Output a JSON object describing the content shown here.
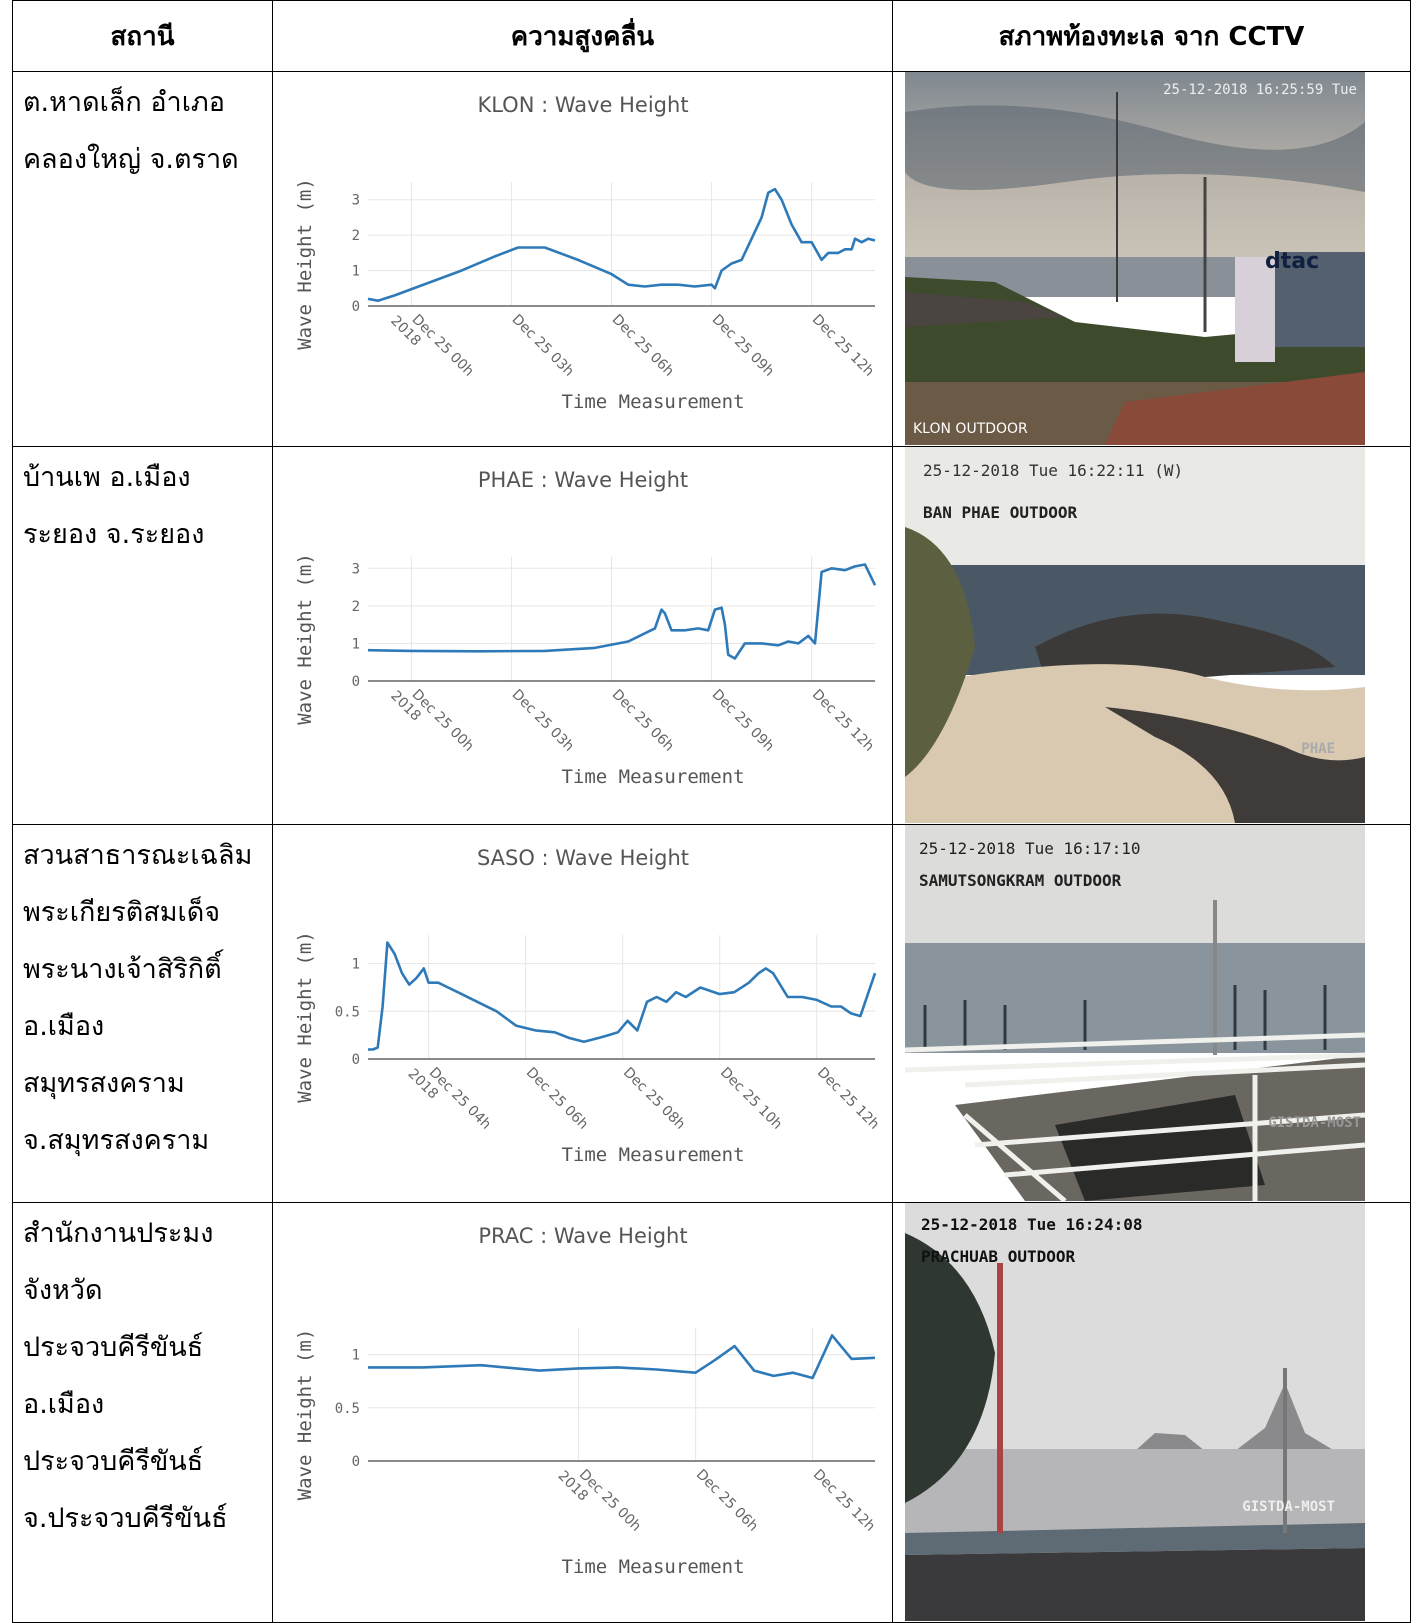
{
  "table": {
    "headers": [
      "สถานี",
      "ความสูงคลื่น",
      "สภาพท้องทะเล จาก CCTV"
    ],
    "rows": [
      {
        "station": "ต.หาดเล็ก อำเภอ\nคลองใหญ่ จ.ตราด",
        "chart_title": "KLON : Wave Height",
        "cctv": {
          "timestamp": "25-12-2018 16:25:59 Tue",
          "label": "KLON OUTDOOR"
        }
      },
      {
        "station": "บ้านเพ อ.เมือง\nระยอง จ.ระยอง",
        "chart_title": "PHAE : Wave Height",
        "cctv": {
          "timestamp": "25-12-2018 Tue 16:22:11 (W)",
          "label": "BAN PHAE OUTDOOR",
          "watermark": "PHAE"
        }
      },
      {
        "station": "สวนสาธารณะเฉลิม\nพระเกียรติสมเด็จ\nพระนางเจ้าสิริกิติ์\nอ.เมืองสมุทรสงคราม\nจ.สมุทรสงคราม",
        "chart_title": "SASO : Wave Height",
        "cctv": {
          "timestamp": "25-12-2018 Tue 16:17:10",
          "label": "SAMUTSONGKRAM OUTDOOR",
          "watermark": "GISTDA-MOST"
        }
      },
      {
        "station": "สำนักงานประมง\nจังหวัด\nประจวบคีรีขันธ์\nอ.เมือง\nประจวบคีรีขันธ์\nจ.ประจวบคีรีขันธ์",
        "chart_title": "PRAC : Wave Height",
        "cctv": {
          "timestamp": "25-12-2018 Tue 16:24:08",
          "label": "PRACHUAB OUTDOOR",
          "watermark": "GISTDA-MOST"
        }
      }
    ]
  },
  "chart_data": [
    {
      "type": "line",
      "title": "KLON : Wave Height",
      "xlabel": "Time Measurement",
      "ylabel": "Wave Height (m)",
      "ylim": [
        0,
        3.5
      ],
      "yticks": [
        0,
        1,
        2,
        3
      ],
      "xlim_hours": [
        -1.3,
        13.9
      ],
      "xticks": [
        {
          "h": 0,
          "label": [
            "Dec 25 00h",
            "2018"
          ]
        },
        {
          "h": 3,
          "label": [
            "Dec 25 03h"
          ]
        },
        {
          "h": 6,
          "label": [
            "Dec 25 06h"
          ]
        },
        {
          "h": 9,
          "label": [
            "Dec 25 09h"
          ]
        },
        {
          "h": 12,
          "label": [
            "Dec 25 12h"
          ]
        }
      ],
      "x": [
        -1.3,
        -1.0,
        -0.5,
        0.5,
        1.5,
        2.5,
        3.2,
        4.0,
        5.0,
        6.0,
        6.5,
        7.0,
        7.5,
        8.0,
        8.5,
        9.0,
        9.1,
        9.3,
        9.6,
        9.9,
        10.2,
        10.5,
        10.7,
        10.9,
        11.1,
        11.4,
        11.7,
        12.0,
        12.3,
        12.5,
        12.8,
        13.0,
        13.2,
        13.3,
        13.5,
        13.7,
        13.9
      ],
      "y": [
        0.2,
        0.15,
        0.3,
        0.65,
        1.0,
        1.4,
        1.65,
        1.65,
        1.3,
        0.9,
        0.6,
        0.55,
        0.6,
        0.6,
        0.55,
        0.6,
        0.5,
        1.0,
        1.2,
        1.3,
        1.9,
        2.5,
        3.2,
        3.3,
        3.0,
        2.3,
        1.8,
        1.8,
        1.3,
        1.5,
        1.5,
        1.6,
        1.6,
        1.9,
        1.8,
        1.9,
        1.85
      ]
    },
    {
      "type": "line",
      "title": "PHAE : Wave Height",
      "xlabel": "Time Measurement",
      "ylabel": "Wave Height (m)",
      "ylim": [
        0,
        3.3
      ],
      "yticks": [
        0,
        1,
        2,
        3
      ],
      "xlim_hours": [
        -1.3,
        13.9
      ],
      "xticks": [
        {
          "h": 0,
          "label": [
            "Dec 25 00h",
            "2018"
          ]
        },
        {
          "h": 3,
          "label": [
            "Dec 25 03h"
          ]
        },
        {
          "h": 6,
          "label": [
            "Dec 25 06h"
          ]
        },
        {
          "h": 9,
          "label": [
            "Dec 25 09h"
          ]
        },
        {
          "h": 12,
          "label": [
            "Dec 25 12h"
          ]
        }
      ],
      "x": [
        -1.3,
        0,
        2,
        4,
        5.5,
        6.5,
        7.3,
        7.5,
        7.6,
        7.8,
        8.2,
        8.6,
        8.9,
        9.1,
        9.3,
        9.4,
        9.5,
        9.7,
        10.0,
        10.5,
        11.0,
        11.3,
        11.6,
        11.9,
        12.1,
        12.3,
        12.6,
        13.0,
        13.3,
        13.6,
        13.9
      ],
      "y": [
        0.82,
        0.8,
        0.79,
        0.8,
        0.88,
        1.05,
        1.4,
        1.9,
        1.8,
        1.35,
        1.35,
        1.4,
        1.35,
        1.9,
        1.95,
        1.5,
        0.7,
        0.6,
        1.0,
        1.0,
        0.95,
        1.05,
        1.0,
        1.2,
        1.0,
        2.9,
        3.0,
        2.95,
        3.05,
        3.1,
        2.55
      ]
    },
    {
      "type": "line",
      "title": "SASO : Wave Height",
      "xlabel": "Time Measurement",
      "ylabel": "Wave Height (m)",
      "ylim": [
        0,
        1.3
      ],
      "yticks": [
        0,
        0.5,
        1
      ],
      "xlim_hours": [
        2.75,
        13.2
      ],
      "xticks": [
        {
          "h": 4,
          "label": [
            "Dec 25 04h",
            "2018"
          ]
        },
        {
          "h": 6,
          "label": [
            "Dec 25 06h"
          ]
        },
        {
          "h": 8,
          "label": [
            "Dec 25 08h"
          ]
        },
        {
          "h": 10,
          "label": [
            "Dec 25 10h"
          ]
        },
        {
          "h": 12,
          "label": [
            "Dec 25 12h"
          ]
        }
      ],
      "x": [
        2.75,
        2.85,
        2.95,
        3.05,
        3.15,
        3.3,
        3.45,
        3.6,
        3.75,
        3.9,
        4.0,
        4.2,
        4.4,
        4.6,
        5.0,
        5.4,
        5.8,
        6.2,
        6.6,
        6.9,
        7.2,
        7.5,
        7.7,
        7.9,
        8.1,
        8.3,
        8.5,
        8.7,
        8.9,
        9.1,
        9.3,
        9.6,
        10.0,
        10.3,
        10.6,
        10.8,
        10.95,
        11.1,
        11.4,
        11.7,
        12.0,
        12.3,
        12.5,
        12.7,
        12.9,
        13.2
      ],
      "y": [
        0.1,
        0.1,
        0.12,
        0.55,
        1.22,
        1.1,
        0.9,
        0.78,
        0.85,
        0.95,
        0.8,
        0.8,
        0.75,
        0.7,
        0.6,
        0.5,
        0.35,
        0.3,
        0.28,
        0.22,
        0.18,
        0.22,
        0.25,
        0.28,
        0.4,
        0.3,
        0.6,
        0.65,
        0.6,
        0.7,
        0.65,
        0.75,
        0.68,
        0.7,
        0.8,
        0.9,
        0.95,
        0.9,
        0.65,
        0.65,
        0.62,
        0.55,
        0.55,
        0.48,
        0.45,
        0.9
      ]
    },
    {
      "type": "line",
      "title": "PRAC : Wave Height",
      "xlabel": "Time Measurement",
      "ylabel": "Wave Height (m)",
      "ylim": [
        0,
        1.25
      ],
      "yticks": [
        0,
        0.5,
        1
      ],
      "xlim_hours": [
        -10.8,
        15.2
      ],
      "xticks": [
        {
          "h": 0,
          "label": [
            "Dec 25 00h",
            "2018"
          ]
        },
        {
          "h": 6,
          "label": [
            "Dec 25 06h"
          ]
        },
        {
          "h": 12,
          "label": [
            "Dec 25 12h"
          ]
        }
      ],
      "x": [
        -10.8,
        -8,
        -5,
        -2,
        0,
        2,
        4,
        6,
        7,
        8,
        9,
        10,
        11,
        12,
        13,
        14,
        15.2
      ],
      "y": [
        0.88,
        0.88,
        0.9,
        0.85,
        0.87,
        0.88,
        0.86,
        0.83,
        0.95,
        1.08,
        0.85,
        0.8,
        0.83,
        0.78,
        1.18,
        0.96,
        0.97
      ]
    }
  ]
}
